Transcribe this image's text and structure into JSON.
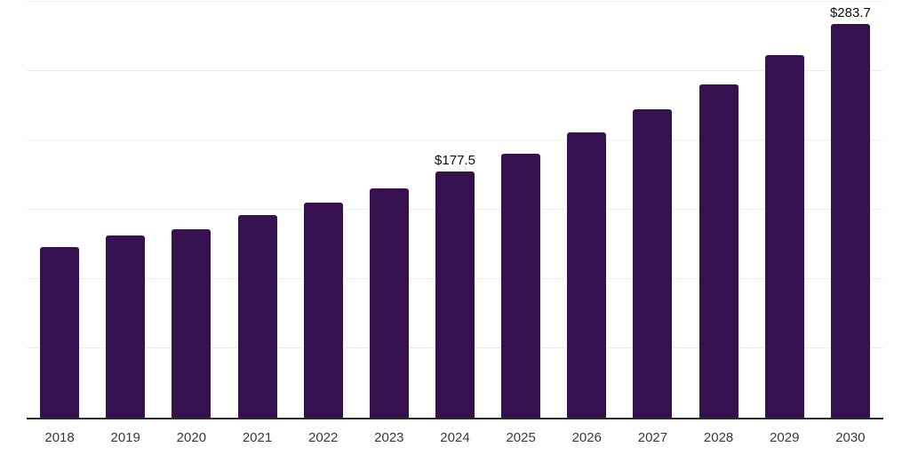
{
  "chart": {
    "background_color": "#ffffff",
    "bar_color": "#351150",
    "grid_color": "#ededed",
    "axis_color": "#2a2a2a",
    "tick_label_color": "#3a3a3a",
    "data_label_color": "#0d0d0d"
  },
  "chart_data": {
    "type": "bar",
    "title": "",
    "xlabel": "",
    "ylabel": "",
    "categories": [
      "2018",
      "2019",
      "2020",
      "2021",
      "2022",
      "2023",
      "2024",
      "2025",
      "2026",
      "2027",
      "2028",
      "2029",
      "2030"
    ],
    "values": [
      123.4,
      131.4,
      136.2,
      146.2,
      155.1,
      165.4,
      177.5,
      190.4,
      205.8,
      222.4,
      240.4,
      261.5,
      283.7
    ],
    "data_labels": [
      {
        "index": 6,
        "text": "$177.5"
      },
      {
        "index": 12,
        "text": "$283.7"
      }
    ],
    "ylim": [
      0,
      300
    ],
    "gridline_step": 50,
    "grid": true,
    "y_tick_labels_visible": false,
    "legend": false
  }
}
